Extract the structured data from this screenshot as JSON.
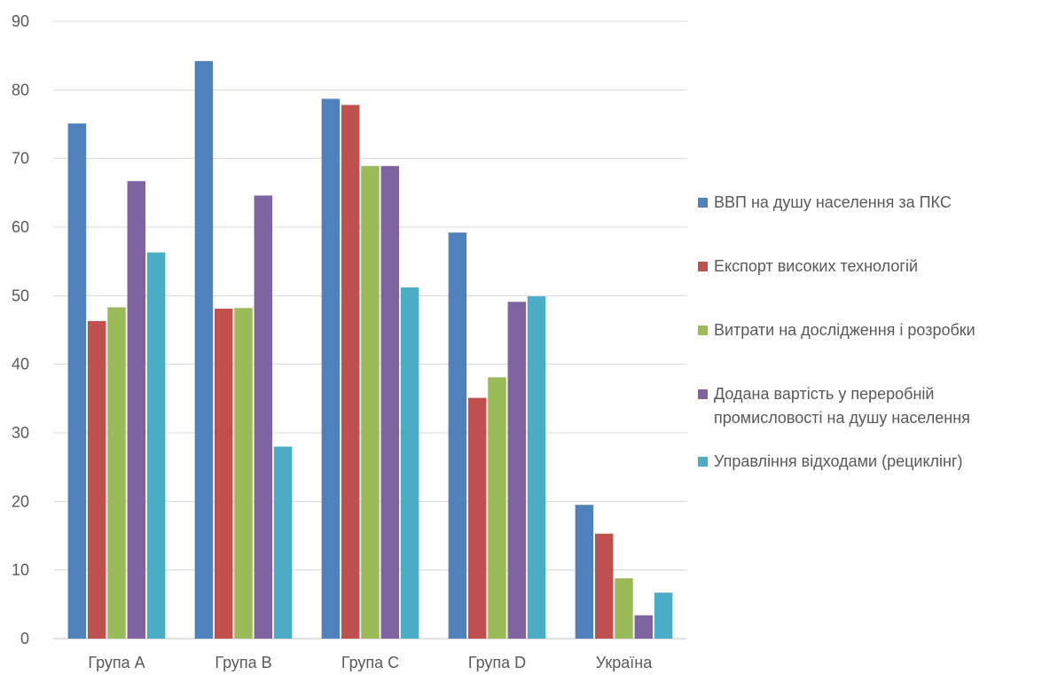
{
  "chart_data": {
    "type": "bar",
    "categories": [
      "Група A",
      "Група B",
      "Група C",
      "Група D",
      "Україна"
    ],
    "ylim": [
      0,
      90
    ],
    "yticks": [
      0,
      10,
      20,
      30,
      40,
      50,
      60,
      70,
      80,
      90
    ],
    "grid": true,
    "legend_position": "right",
    "series": [
      {
        "name": "ВВП на душу населення за ПКС",
        "color": "#4f81bd",
        "values": [
          75.1,
          84.2,
          78.7,
          59.2,
          19.5
        ]
      },
      {
        "name": "Експорт високих технологій",
        "color": "#c0504d",
        "values": [
          46.3,
          48.1,
          77.8,
          35.1,
          15.3
        ]
      },
      {
        "name": "Витрати на дослідження і розробки",
        "color": "#9bbb59",
        "values": [
          48.3,
          48.2,
          68.9,
          38.1,
          8.8
        ]
      },
      {
        "name": "Додана вартість у переробній\nпромисловості на душу населення",
        "color": "#8064a2",
        "values": [
          66.7,
          64.6,
          68.9,
          49.1,
          3.4
        ]
      },
      {
        "name": "Управління відходами (рециклінг)",
        "color": "#4bacc6",
        "values": [
          56.3,
          28.0,
          51.2,
          49.9,
          6.7
        ]
      }
    ]
  }
}
